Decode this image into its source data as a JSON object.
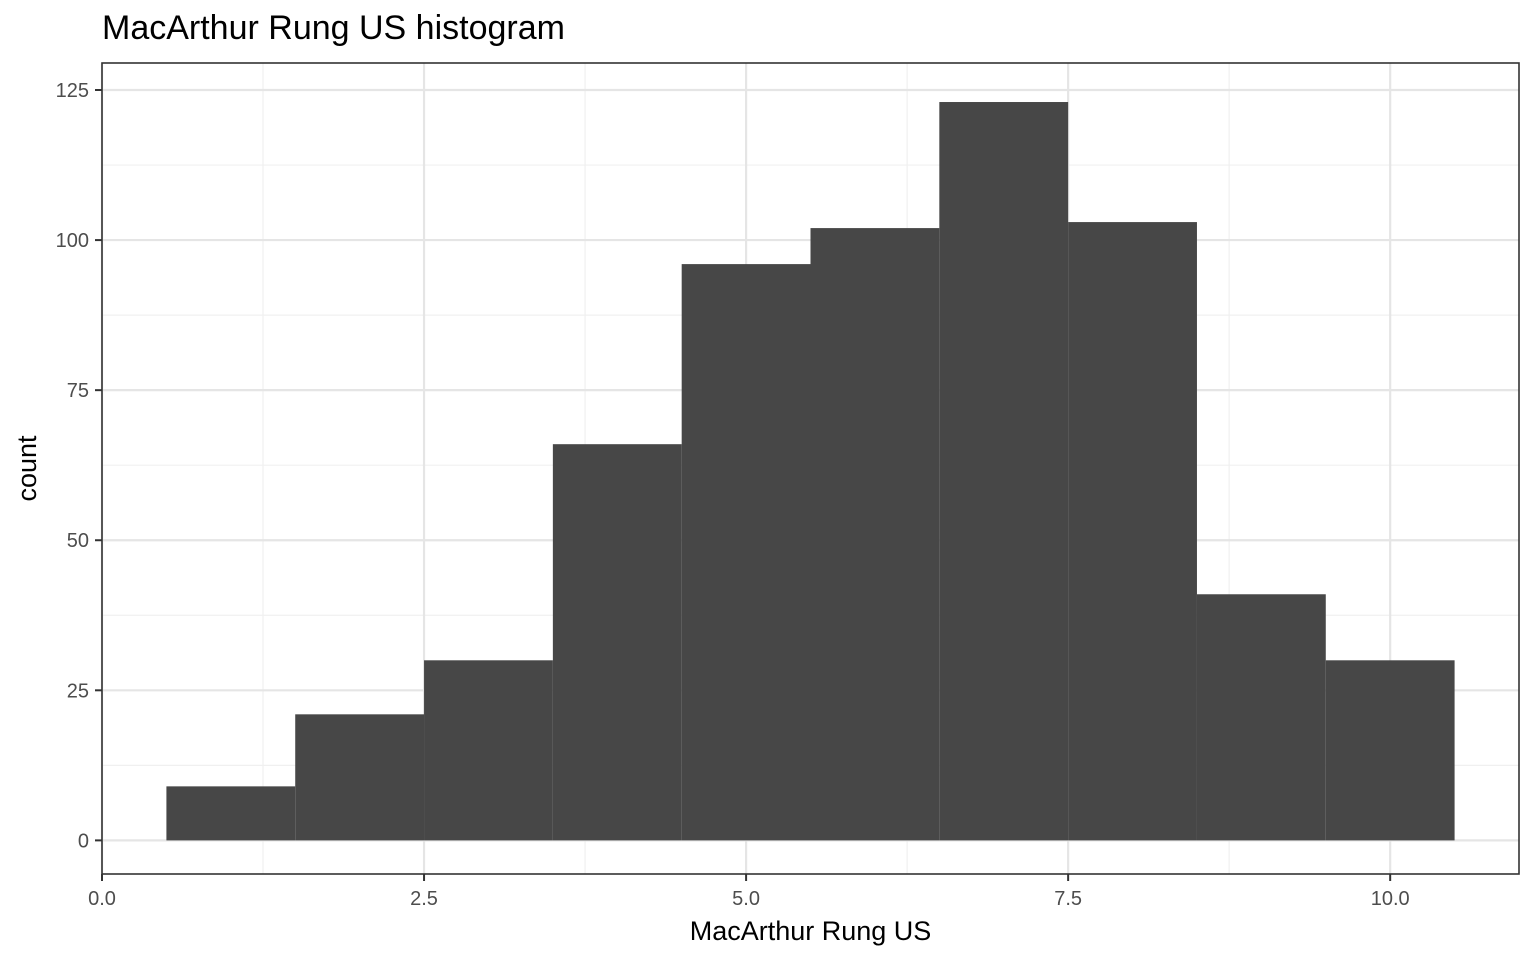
{
  "chart_data": {
    "type": "bar",
    "title": "MacArthur Rung US histogram",
    "xlabel": "MacArthur Rung US",
    "ylabel": "count",
    "xlim": [
      0,
      11
    ],
    "ylim": [
      -5.6,
      129.5
    ],
    "x_ticks": [
      0.0,
      2.5,
      5.0,
      7.5,
      10.0
    ],
    "x_tick_labels": [
      "0.0",
      "2.5",
      "5.0",
      "7.5",
      "10.0"
    ],
    "y_ticks": [
      0,
      25,
      50,
      75,
      100,
      125
    ],
    "y_tick_labels": [
      "0",
      "25",
      "50",
      "75",
      "100",
      "125"
    ],
    "grid": true,
    "bar_color": "#474747",
    "bins": [
      {
        "x_start": 0.5,
        "x_end": 1.5,
        "count": 9
      },
      {
        "x_start": 1.5,
        "x_end": 2.5,
        "count": 21
      },
      {
        "x_start": 2.5,
        "x_end": 3.5,
        "count": 30
      },
      {
        "x_start": 3.5,
        "x_end": 4.5,
        "count": 66
      },
      {
        "x_start": 4.5,
        "x_end": 5.5,
        "count": 96
      },
      {
        "x_start": 5.5,
        "x_end": 6.5,
        "count": 102
      },
      {
        "x_start": 6.5,
        "x_end": 7.5,
        "count": 123
      },
      {
        "x_start": 7.5,
        "x_end": 8.5,
        "count": 103
      },
      {
        "x_start": 8.5,
        "x_end": 9.5,
        "count": 41
      },
      {
        "x_start": 9.5,
        "x_end": 10.5,
        "count": 30
      }
    ]
  }
}
